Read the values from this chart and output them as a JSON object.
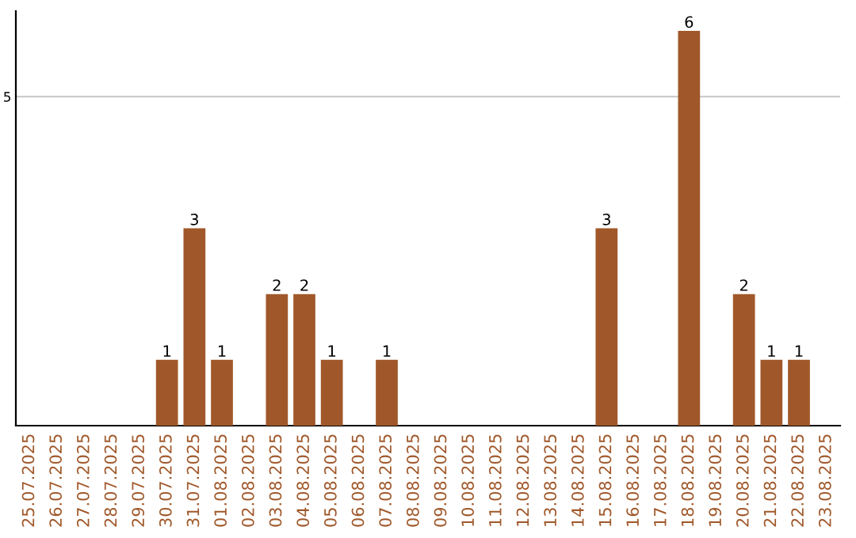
{
  "chart_data": {
    "type": "bar",
    "categories": [
      "25.07.2025",
      "26.07.2025",
      "27.07.2025",
      "28.07.2025",
      "29.07.2025",
      "30.07.2025",
      "31.07.2025",
      "01.08.2025",
      "02.08.2025",
      "03.08.2025",
      "04.08.2025",
      "05.08.2025",
      "06.08.2025",
      "07.08.2025",
      "08.08.2025",
      "09.08.2025",
      "10.08.2025",
      "11.08.2025",
      "12.08.2025",
      "13.08.2025",
      "14.08.2025",
      "15.08.2025",
      "16.08.2025",
      "17.08.2025",
      "18.08.2025",
      "19.08.2025",
      "20.08.2025",
      "21.08.2025",
      "22.08.2025",
      "23.08.2025"
    ],
    "values": [
      0,
      0,
      0,
      0,
      0,
      1,
      3,
      1,
      0,
      2,
      2,
      1,
      0,
      1,
      0,
      0,
      0,
      0,
      0,
      0,
      0,
      3,
      0,
      0,
      6,
      0,
      2,
      1,
      1,
      0
    ],
    "value_labels": [
      null,
      null,
      null,
      null,
      null,
      "1",
      "3",
      "1",
      null,
      "2",
      "2",
      "1",
      null,
      "1",
      null,
      null,
      null,
      null,
      null,
      null,
      null,
      "3",
      null,
      null,
      "6",
      null,
      "2",
      "1",
      "1",
      null
    ],
    "color": "#a0582a",
    "ylim": [
      0,
      6.3
    ],
    "yticks": [
      5
    ],
    "grid": "y"
  }
}
